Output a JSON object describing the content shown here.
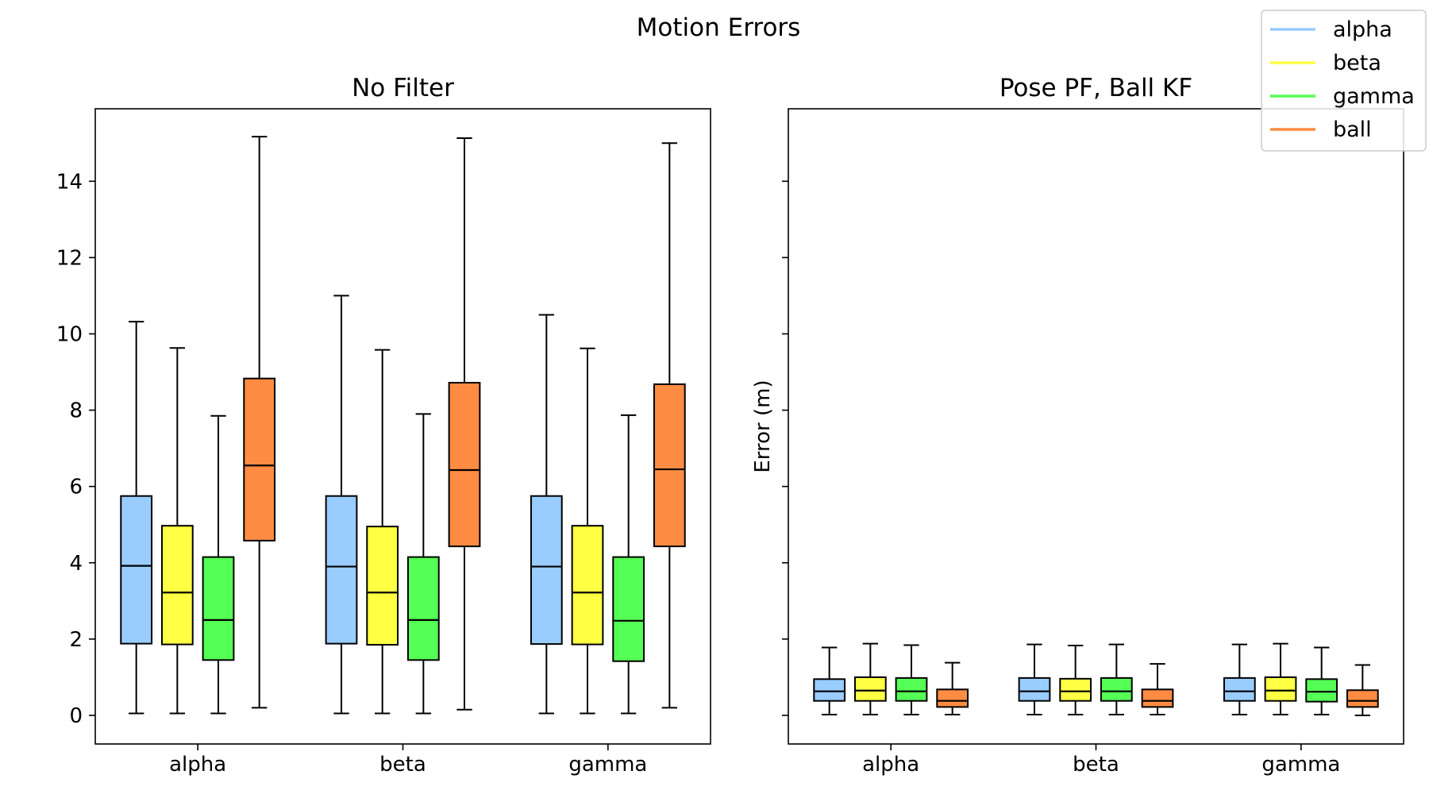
{
  "figure_title": "Motion Errors",
  "legend": [
    {
      "label": "alpha",
      "color": "#99ccff"
    },
    {
      "label": "beta",
      "color": "#ffff44"
    },
    {
      "label": "gamma",
      "color": "#55ff55"
    },
    {
      "label": "ball",
      "color": "#ff8c42"
    }
  ],
  "chart_data": [
    {
      "type": "boxplot",
      "title": "No Filter",
      "xlabel": "",
      "ylabel": "",
      "categories": [
        "alpha",
        "beta",
        "gamma"
      ],
      "ylim": [
        -0.75,
        15.9
      ],
      "yticks": [
        0,
        2,
        4,
        6,
        8,
        10,
        12,
        14
      ],
      "legend_placement": "top-right of figure",
      "grid": false,
      "series": [
        {
          "name": "alpha",
          "color": "#99ccff",
          "boxes": [
            {
              "min": 0.05,
              "q1": 1.88,
              "median": 3.92,
              "q3": 5.75,
              "max": 10.32
            },
            {
              "min": 0.05,
              "q1": 1.88,
              "median": 3.9,
              "q3": 5.75,
              "max": 11.0
            },
            {
              "min": 0.05,
              "q1": 1.87,
              "median": 3.9,
              "q3": 5.75,
              "max": 10.5
            }
          ]
        },
        {
          "name": "beta",
          "color": "#ffff44",
          "boxes": [
            {
              "min": 0.05,
              "q1": 1.86,
              "median": 3.22,
              "q3": 4.97,
              "max": 9.63
            },
            {
              "min": 0.05,
              "q1": 1.85,
              "median": 3.22,
              "q3": 4.95,
              "max": 9.58
            },
            {
              "min": 0.05,
              "q1": 1.86,
              "median": 3.22,
              "q3": 4.97,
              "max": 9.62
            }
          ]
        },
        {
          "name": "gamma",
          "color": "#55ff55",
          "boxes": [
            {
              "min": 0.05,
              "q1": 1.45,
              "median": 2.5,
              "q3": 4.15,
              "max": 7.85
            },
            {
              "min": 0.05,
              "q1": 1.45,
              "median": 2.5,
              "q3": 4.15,
              "max": 7.9
            },
            {
              "min": 0.05,
              "q1": 1.42,
              "median": 2.48,
              "q3": 4.15,
              "max": 7.87
            }
          ]
        },
        {
          "name": "ball",
          "color": "#ff8c42",
          "boxes": [
            {
              "min": 0.2,
              "q1": 4.58,
              "median": 6.55,
              "q3": 8.83,
              "max": 15.17
            },
            {
              "min": 0.15,
              "q1": 4.43,
              "median": 6.43,
              "q3": 8.72,
              "max": 15.13
            },
            {
              "min": 0.2,
              "q1": 4.43,
              "median": 6.45,
              "q3": 8.68,
              "max": 15.0
            }
          ]
        }
      ]
    },
    {
      "type": "boxplot",
      "title": "Pose PF, Ball KF",
      "xlabel": "",
      "ylabel": "Error (m)",
      "categories": [
        "alpha",
        "beta",
        "gamma"
      ],
      "ylim": [
        -0.75,
        15.9
      ],
      "yticks": [
        0,
        2,
        4,
        6,
        8,
        10,
        12,
        14
      ],
      "show_ytick_labels": false,
      "grid": false,
      "series": [
        {
          "name": "alpha",
          "color": "#99ccff",
          "boxes": [
            {
              "min": 0.02,
              "q1": 0.38,
              "median": 0.63,
              "q3": 0.95,
              "max": 1.78
            },
            {
              "min": 0.02,
              "q1": 0.38,
              "median": 0.63,
              "q3": 0.98,
              "max": 1.86
            },
            {
              "min": 0.02,
              "q1": 0.38,
              "median": 0.63,
              "q3": 0.98,
              "max": 1.86
            }
          ]
        },
        {
          "name": "beta",
          "color": "#ffff44",
          "boxes": [
            {
              "min": 0.02,
              "q1": 0.38,
              "median": 0.65,
              "q3": 1.0,
              "max": 1.88
            },
            {
              "min": 0.02,
              "q1": 0.38,
              "median": 0.63,
              "q3": 0.96,
              "max": 1.83
            },
            {
              "min": 0.02,
              "q1": 0.38,
              "median": 0.65,
              "q3": 1.0,
              "max": 1.88
            }
          ]
        },
        {
          "name": "gamma",
          "color": "#55ff55",
          "boxes": [
            {
              "min": 0.02,
              "q1": 0.38,
              "median": 0.63,
              "q3": 0.98,
              "max": 1.84
            },
            {
              "min": 0.02,
              "q1": 0.38,
              "median": 0.63,
              "q3": 0.98,
              "max": 1.86
            },
            {
              "min": 0.02,
              "q1": 0.36,
              "median": 0.62,
              "q3": 0.95,
              "max": 1.78
            }
          ]
        },
        {
          "name": "ball",
          "color": "#ff8c42",
          "boxes": [
            {
              "min": 0.02,
              "q1": 0.22,
              "median": 0.38,
              "q3": 0.68,
              "max": 1.38
            },
            {
              "min": 0.02,
              "q1": 0.22,
              "median": 0.38,
              "q3": 0.68,
              "max": 1.35
            },
            {
              "min": 0.0,
              "q1": 0.22,
              "median": 0.38,
              "q3": 0.66,
              "max": 1.32
            }
          ]
        }
      ]
    }
  ]
}
